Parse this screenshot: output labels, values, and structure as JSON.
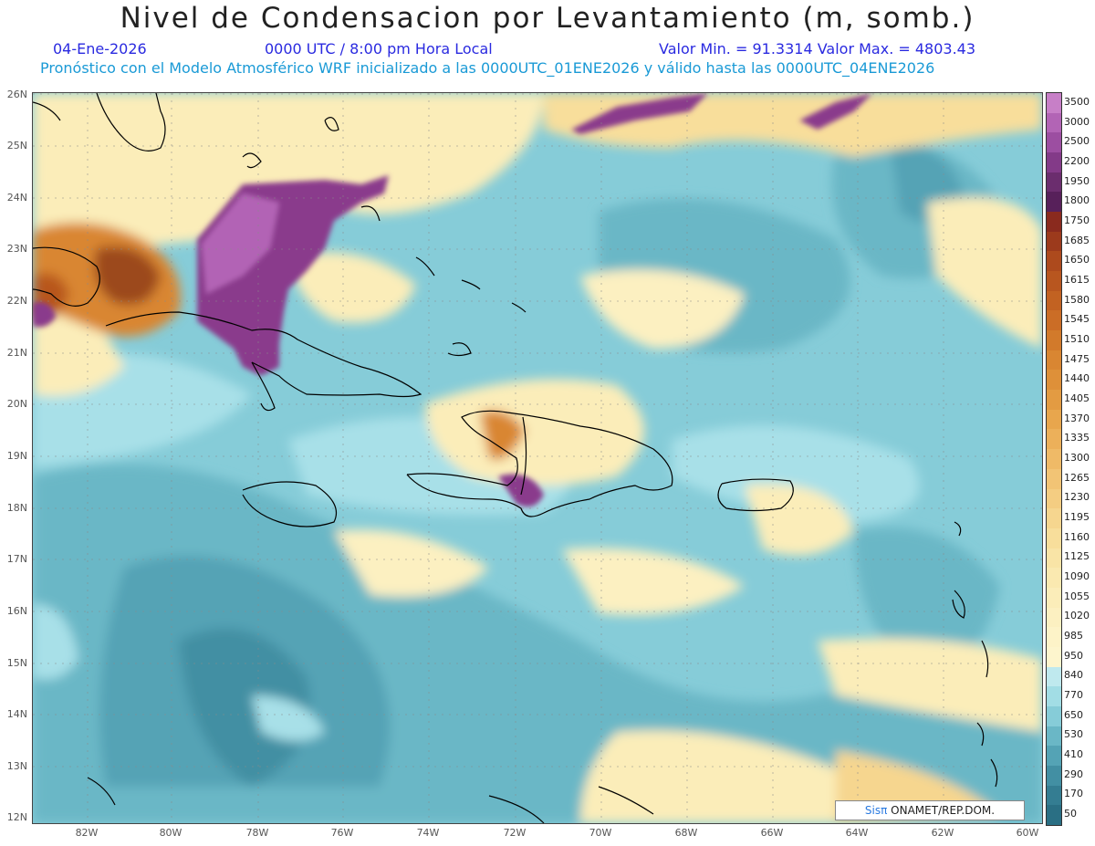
{
  "title": "Nivel de Condensacion por Levantamiento (m, somb.)",
  "date": "04-Ene-2026",
  "time": "0000 UTC / 8:00 pm Hora Local",
  "minmax": "Valor Min. = 91.3314  Valor Max. = 4803.43",
  "forecast": "Pronóstico con el Modelo Atmosférico WRF inicializado a las 0000UTC_01ENE2026 y válido hasta las  0000UTC_04ENE2026",
  "lat_labels": [
    "26N",
    "25N",
    "24N",
    "23N",
    "22N",
    "21N",
    "20N",
    "19N",
    "18N",
    "17N",
    "16N",
    "15N",
    "14N",
    "13N",
    "12N"
  ],
  "lon_labels": [
    "82W",
    "80W",
    "78W",
    "76W",
    "74W",
    "72W",
    "70W",
    "68W",
    "66W",
    "64W",
    "62W",
    "60W"
  ],
  "colorbar": {
    "labels": [
      "3500",
      "3000",
      "2500",
      "2200",
      "1950",
      "1800",
      "1750",
      "1685",
      "1650",
      "1615",
      "1580",
      "1545",
      "1510",
      "1475",
      "1440",
      "1405",
      "1370",
      "1335",
      "1300",
      "1265",
      "1230",
      "1195",
      "1160",
      "1125",
      "1090",
      "1055",
      "1020",
      "985",
      "950",
      "840",
      "770",
      "650",
      "530",
      "410",
      "290",
      "170",
      "50"
    ],
    "colors": [
      "#c77fc7",
      "#b264b5",
      "#9c4ea1",
      "#833a88",
      "#6b2d6e",
      "#57205a",
      "#8a2a1e",
      "#9c3a1c",
      "#ad4a1d",
      "#b8561f",
      "#c26222",
      "#cb6d26",
      "#d27a2b",
      "#d98632",
      "#de9039",
      "#e39b42",
      "#e8a64d",
      "#ecb05a",
      "#efba67",
      "#f2c475",
      "#f4cd82",
      "#f6d68f",
      "#f8de9b",
      "#f9e4a6",
      "#fae9b0",
      "#fbedb9",
      "#fcf0c1",
      "#fdf3c8",
      "#fdf5cd",
      "#bfe9ee",
      "#a2dde5",
      "#86ccd8",
      "#6ab7c6",
      "#54a3b5",
      "#428fa3",
      "#347d92",
      "#2a6f84"
    ]
  },
  "logo": {
    "brand": "Sisπ",
    "text": " ONAMET/REP.DOM."
  },
  "palette": {
    "ocean_low": "#2f7f92",
    "ocean_mid": "#6ab7c6",
    "ocean_light": "#a8e0e8",
    "yellow": "#fbedb9",
    "orange": "#d98632",
    "brown": "#9c4a1c",
    "purple": "#8a3a8c",
    "lilac": "#b264b5",
    "coast": "#000000"
  }
}
